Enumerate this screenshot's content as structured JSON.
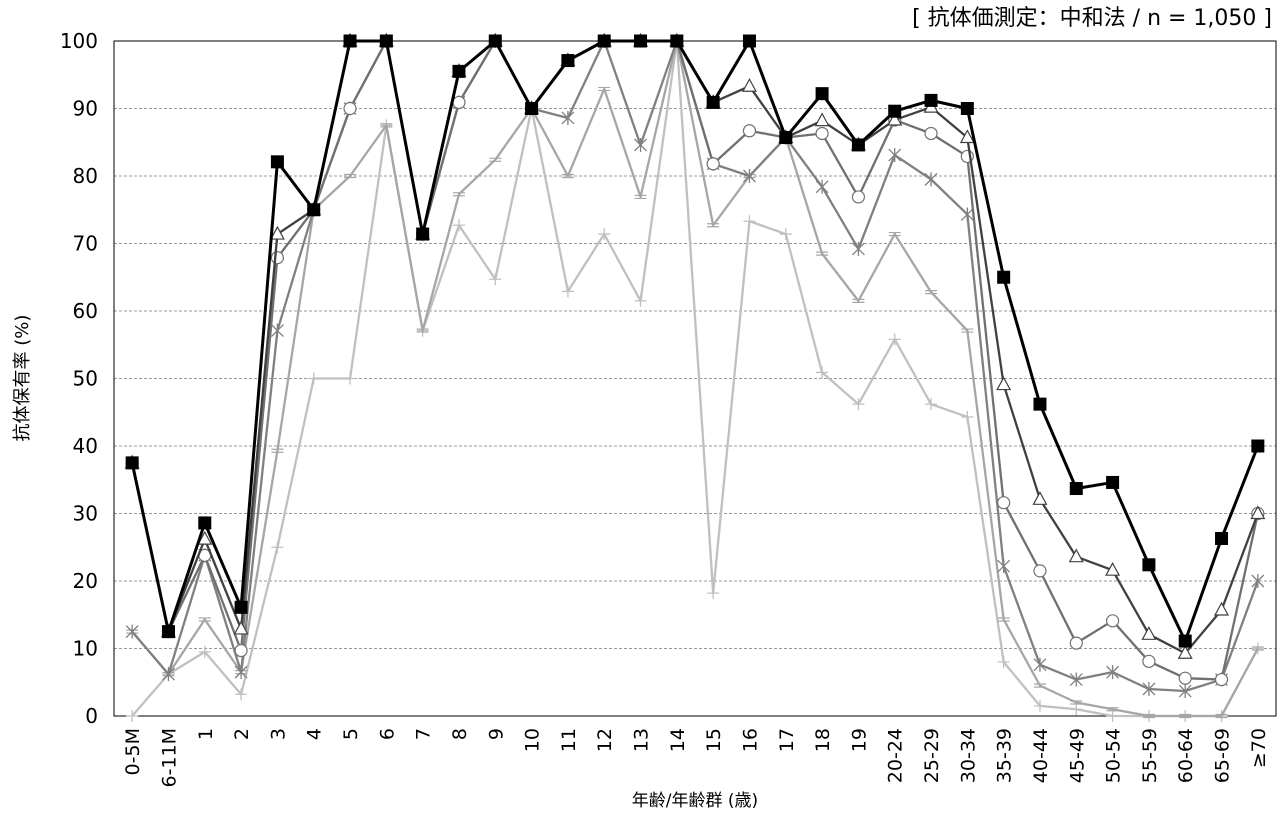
{
  "chart_data": {
    "type": "line",
    "title": "",
    "annotation": "[ 抗体価測定：中和法 / n = 1,050 ]",
    "xlabel": "年齢/年齢群 (歳)",
    "ylabel": "抗体保有率 (%)",
    "ylim": [
      0,
      100
    ],
    "yticks": [
      0,
      10,
      20,
      30,
      40,
      50,
      60,
      70,
      80,
      90,
      100
    ],
    "grid": true,
    "legend": "none",
    "categories": [
      "0-5M",
      "6-11M",
      "1",
      "2",
      "3",
      "4",
      "5",
      "6",
      "7",
      "8",
      "9",
      "10",
      "11",
      "12",
      "13",
      "14",
      "15",
      "16",
      "17",
      "18",
      "19",
      "20-24",
      "25-29",
      "30-34",
      "35-39",
      "40-44",
      "45-49",
      "50-54",
      "55-59",
      "60-64",
      "65-69",
      "≥70"
    ],
    "series": [
      {
        "marker": "plus",
        "color": "#c0c0c0",
        "values": [
          0,
          6.2,
          9.5,
          3.2,
          25,
          50,
          50,
          87.5,
          57.1,
          72.7,
          64.7,
          90,
          62.9,
          71.4,
          61.5,
          100,
          18.2,
          73.3,
          71.4,
          50.9,
          46.2,
          55.8,
          46.2,
          44.3,
          8,
          1.5,
          1,
          0,
          0,
          0,
          0,
          10
        ]
      },
      {
        "marker": "dash",
        "color": "#a6a6a6",
        "values": [
          12.5,
          6.2,
          14.3,
          6.5,
          39.3,
          75,
          80,
          87.5,
          57.1,
          77.3,
          82.4,
          90,
          80,
          92.9,
          76.9,
          100,
          72.7,
          80,
          85.7,
          68.5,
          61.5,
          71.4,
          62.8,
          57.1,
          14.3,
          4.5,
          2,
          1,
          0,
          0,
          0,
          10
        ]
      },
      {
        "marker": "asterisk",
        "color": "#808080",
        "values": [
          12.5,
          6.2,
          23.8,
          6.5,
          57.1,
          75,
          90,
          100,
          71.4,
          90.9,
          100,
          90,
          88.6,
          100,
          84.6,
          100,
          81.8,
          80,
          85.7,
          78.4,
          69.2,
          83.1,
          79.5,
          74.3,
          22.2,
          7.6,
          5.4,
          6.5,
          4,
          3.7,
          5.4,
          20
        ]
      },
      {
        "marker": "circle",
        "color": "#707070",
        "values": [
          37.5,
          12.5,
          23.8,
          9.7,
          67.9,
          75,
          90,
          100,
          71.4,
          90.9,
          100,
          90,
          97.1,
          100,
          100,
          100,
          81.8,
          86.7,
          85.7,
          86.3,
          76.9,
          88.3,
          86.3,
          82.9,
          31.6,
          21.5,
          10.8,
          14.1,
          8.1,
          5.6,
          5.4,
          30
        ]
      },
      {
        "marker": "triangle",
        "color": "#404040",
        "values": [
          37.5,
          12.5,
          26.2,
          12.9,
          71.4,
          75,
          100,
          100,
          71.4,
          95.5,
          100,
          90,
          97.1,
          100,
          100,
          100,
          90.9,
          93.3,
          85.7,
          88.2,
          84.6,
          88.3,
          90.2,
          85.7,
          49.1,
          32.1,
          23.6,
          21.6,
          12.1,
          9.3,
          15.7,
          30
        ]
      },
      {
        "marker": "square",
        "color": "#000000",
        "values": [
          37.5,
          12.5,
          28.6,
          16.1,
          82.1,
          75,
          100,
          100,
          71.4,
          95.5,
          100,
          90,
          97.1,
          100,
          100,
          100,
          90.9,
          100,
          85.7,
          92.2,
          84.6,
          89.6,
          91.2,
          90,
          65,
          46.2,
          33.7,
          34.6,
          22.4,
          11.1,
          26.3,
          40
        ]
      }
    ]
  }
}
